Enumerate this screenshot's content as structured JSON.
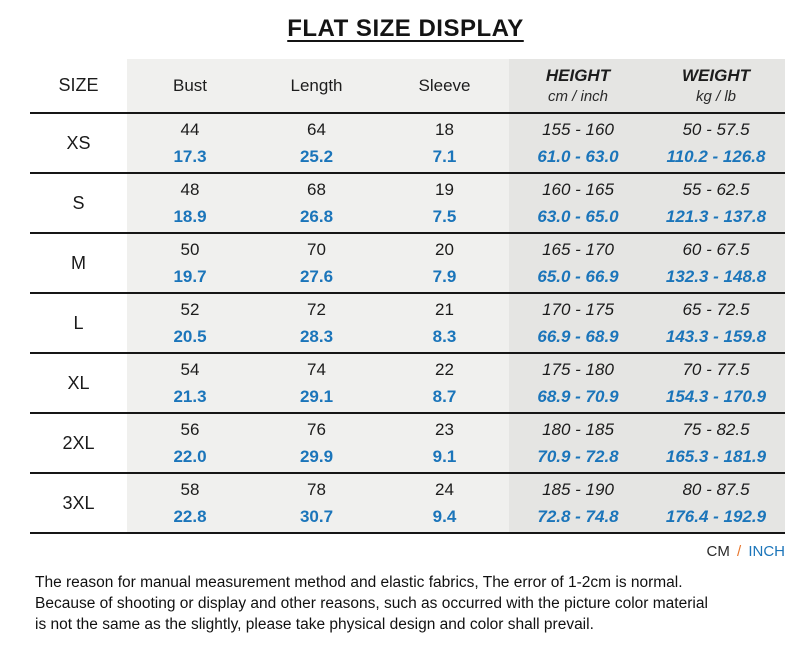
{
  "colors": {
    "value_blue": "#1b75ba",
    "slash_orange": "#e8772e",
    "light_column_bg": "#f0f0ee",
    "dark_column_bg": "#e5e5e3",
    "rule_black": "#161616"
  },
  "chart_data": {
    "type": "table",
    "title": "FLAT SIZE DISPLAY",
    "headers": {
      "size": "SIZE",
      "bust": "Bust",
      "length": "Length",
      "sleeve": "Sleeve",
      "height_title": "HEIGHT",
      "height_sub": "cm / inch",
      "weight_title": "WEIGHT",
      "weight_sub": "kg / lb"
    },
    "rows": [
      {
        "size": "XS",
        "cm": {
          "bust": "44",
          "length": "64",
          "sleeve": "18",
          "height": "155 - 160",
          "weight": "50 - 57.5"
        },
        "inch": {
          "bust": "17.3",
          "length": "25.2",
          "sleeve": "7.1",
          "height": "61.0 - 63.0",
          "weight": "110.2 - 126.8"
        }
      },
      {
        "size": "S",
        "cm": {
          "bust": "48",
          "length": "68",
          "sleeve": "19",
          "height": "160 - 165",
          "weight": "55 - 62.5"
        },
        "inch": {
          "bust": "18.9",
          "length": "26.8",
          "sleeve": "7.5",
          "height": "63.0 - 65.0",
          "weight": "121.3 - 137.8"
        }
      },
      {
        "size": "M",
        "cm": {
          "bust": "50",
          "length": "70",
          "sleeve": "20",
          "height": "165 - 170",
          "weight": "60 - 67.5"
        },
        "inch": {
          "bust": "19.7",
          "length": "27.6",
          "sleeve": "7.9",
          "height": "65.0 - 66.9",
          "weight": "132.3 - 148.8"
        }
      },
      {
        "size": "L",
        "cm": {
          "bust": "52",
          "length": "72",
          "sleeve": "21",
          "height": "170 - 175",
          "weight": "65 - 72.5"
        },
        "inch": {
          "bust": "20.5",
          "length": "28.3",
          "sleeve": "8.3",
          "height": "66.9 - 68.9",
          "weight": "143.3 - 159.8"
        }
      },
      {
        "size": "XL",
        "cm": {
          "bust": "54",
          "length": "74",
          "sleeve": "22",
          "height": "175 - 180",
          "weight": "70 - 77.5"
        },
        "inch": {
          "bust": "21.3",
          "length": "29.1",
          "sleeve": "8.7",
          "height": "68.9 - 70.9",
          "weight": "154.3 - 170.9"
        }
      },
      {
        "size": "2XL",
        "cm": {
          "bust": "56",
          "length": "76",
          "sleeve": "23",
          "height": "180 - 185",
          "weight": "75 - 82.5"
        },
        "inch": {
          "bust": "22.0",
          "length": "29.9",
          "sleeve": "9.1",
          "height": "70.9 - 72.8",
          "weight": "165.3 - 181.9"
        }
      },
      {
        "size": "3XL",
        "cm": {
          "bust": "58",
          "length": "78",
          "sleeve": "24",
          "height": "185 - 190",
          "weight": "80 - 87.5"
        },
        "inch": {
          "bust": "22.8",
          "length": "30.7",
          "sleeve": "9.4",
          "height": "72.8 - 74.8",
          "weight": "176.4 - 192.9"
        }
      }
    ]
  },
  "legend": {
    "cm": "CM",
    "separator": "/",
    "inch": "INCH"
  },
  "footer": {
    "line1": "The reason for manual measurement method and elastic fabrics, The error of 1-2cm is normal.",
    "line2": "Because of shooting or display and other reasons, such as occurred with the picture color material",
    "line3": "is not the same as the slightly, please take physical design and color shall prevail."
  }
}
